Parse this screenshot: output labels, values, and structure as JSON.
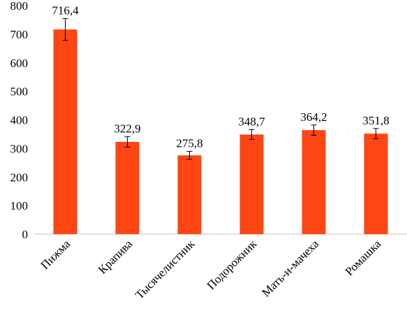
{
  "chart_data": {
    "type": "bar",
    "categories": [
      "Пижма",
      "Крапива",
      "Тысячелистник",
      "Подорожник",
      "Мать-и-мачеха",
      "Ромашка"
    ],
    "values": [
      716.4,
      322.9,
      275.8,
      348.7,
      364.2,
      351.8
    ],
    "value_labels": [
      "716,4",
      "322,9",
      "275,8",
      "348,7",
      "364,2",
      "351,8"
    ],
    "error": [
      38,
      18,
      14,
      17,
      18,
      18
    ],
    "ylim": [
      0,
      800
    ],
    "yticks": [
      0,
      100,
      200,
      300,
      400,
      500,
      600,
      700,
      800
    ],
    "bar_color": "#FF4512",
    "grid": false,
    "legend": "none"
  }
}
